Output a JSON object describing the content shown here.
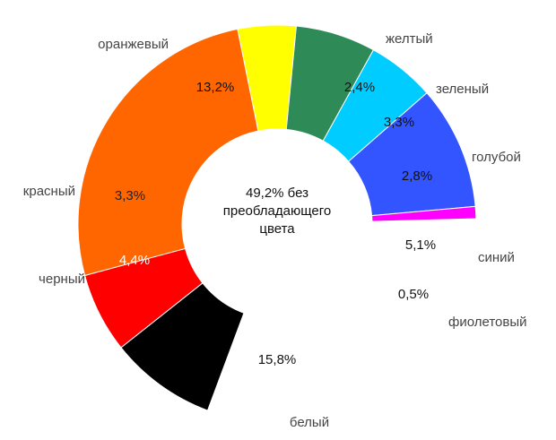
{
  "chart_data": {
    "type": "pie",
    "variant": "donut",
    "center_text": [
      "49,2% без",
      "преобладающего",
      "цвета"
    ],
    "slices": [
      {
        "category": "оранжевый",
        "value": 13.2,
        "label": "13,2%",
        "color": "#ff6600",
        "text_color": "#111111"
      },
      {
        "category": "желтый",
        "value": 2.4,
        "label": "2,4%",
        "color": "#ffff00",
        "text_color": "#111111"
      },
      {
        "category": "зеленый",
        "value": 3.3,
        "label": "3,3%",
        "color": "#2e8b57",
        "text_color": "#111111"
      },
      {
        "category": "голубой",
        "value": 2.8,
        "label": "2,8%",
        "color": "#00ccff",
        "text_color": "#111111"
      },
      {
        "category": "синий",
        "value": 5.1,
        "label": "5,1%",
        "color": "#3355ff",
        "text_color": "#111111"
      },
      {
        "category": "фиолетовый",
        "value": 0.5,
        "label": "0,5%",
        "color": "#ff00ff",
        "text_color": "#111111"
      },
      {
        "category": "белый",
        "value": 15.8,
        "label": "15,8%",
        "color": "#ffffff",
        "text_color": "#111111"
      },
      {
        "category": "черный",
        "value": 4.4,
        "label": "4,4%",
        "color": "#000000",
        "text_color": "#ffffff"
      },
      {
        "category": "красный",
        "value": 3.3,
        "label": "3,3%",
        "color": "#ff0000",
        "text_color": "#222222"
      }
    ]
  }
}
